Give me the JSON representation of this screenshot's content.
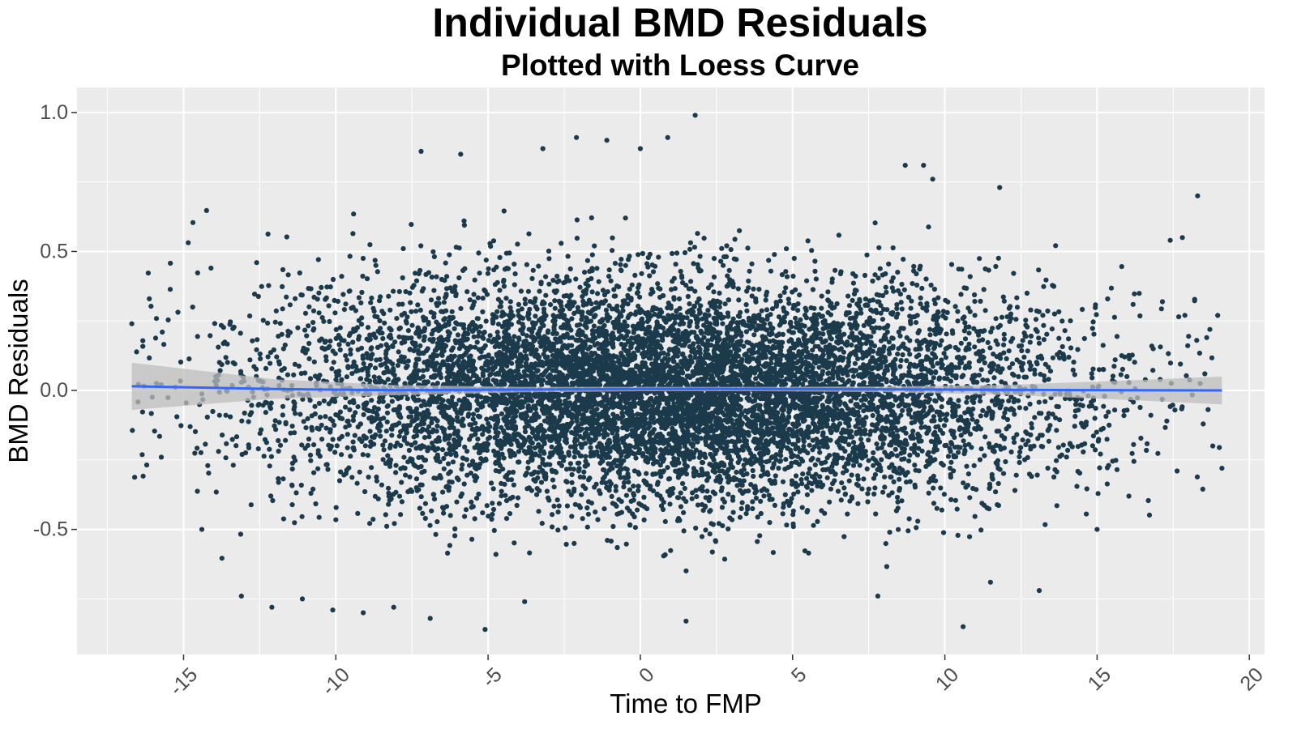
{
  "chart_data": {
    "type": "scatter",
    "title": "Individual BMD Residuals",
    "subtitle": "Plotted with Loess Curve",
    "xlabel": "Time to FMP",
    "ylabel": "BMD Residuals",
    "xlim": [
      -18.5,
      20.5
    ],
    "ylim": [
      -0.95,
      1.09
    ],
    "x_ticks": [
      -15,
      -10,
      -5,
      0,
      5,
      10,
      15,
      20
    ],
    "x_tick_labels": [
      "-15",
      "-10",
      "-5",
      "0",
      "5",
      "10",
      "15",
      "20"
    ],
    "y_ticks": [
      -0.5,
      0.0,
      0.5,
      1.0
    ],
    "y_tick_labels": [
      "-0.5",
      "0.0",
      "0.5",
      "1.0"
    ],
    "grid": true,
    "colors": {
      "panel_background": "#ebebeb",
      "grid": "#ffffff",
      "points": "#1b3a4b",
      "loess_line": "#3366ff",
      "confidence_band": "#bdbdbd"
    },
    "points_summary": {
      "count_approx": 9000,
      "x_center": 1.0,
      "x_sd": 6.5,
      "y_center": 0.0,
      "y_sd": 0.2,
      "x_range": [
        -16.7,
        19.1
      ],
      "y_range": [
        -0.86,
        0.99
      ]
    },
    "outliers": [
      {
        "x": -16.7,
        "y": 0.24
      },
      {
        "x": -15.7,
        "y": 0.21
      },
      {
        "x": -14.7,
        "y": 0.3
      },
      {
        "x": -14.4,
        "y": -0.5
      },
      {
        "x": -14.1,
        "y": 0.44
      },
      {
        "x": -13.1,
        "y": -0.74
      },
      {
        "x": -12.6,
        "y": 0.46
      },
      {
        "x": -12.1,
        "y": -0.78
      },
      {
        "x": -11.1,
        "y": -0.75
      },
      {
        "x": -10.1,
        "y": -0.79
      },
      {
        "x": -9.1,
        "y": -0.8
      },
      {
        "x": -8.1,
        "y": -0.78
      },
      {
        "x": -7.2,
        "y": 0.86
      },
      {
        "x": -6.9,
        "y": -0.82
      },
      {
        "x": -5.9,
        "y": 0.85
      },
      {
        "x": -5.1,
        "y": -0.86
      },
      {
        "x": -3.8,
        "y": -0.76
      },
      {
        "x": -3.2,
        "y": 0.87
      },
      {
        "x": -2.1,
        "y": 0.91
      },
      {
        "x": -1.1,
        "y": 0.9
      },
      {
        "x": 0.0,
        "y": 0.87
      },
      {
        "x": 0.9,
        "y": 0.91
      },
      {
        "x": 1.5,
        "y": -0.83
      },
      {
        "x": 1.8,
        "y": 0.99
      },
      {
        "x": 7.8,
        "y": -0.74
      },
      {
        "x": 8.7,
        "y": 0.81
      },
      {
        "x": 9.3,
        "y": 0.81
      },
      {
        "x": 9.6,
        "y": 0.76
      },
      {
        "x": 10.6,
        "y": -0.85
      },
      {
        "x": 11.5,
        "y": -0.69
      },
      {
        "x": 11.8,
        "y": 0.73
      },
      {
        "x": 13.1,
        "y": -0.72
      },
      {
        "x": 15.0,
        "y": -0.5
      },
      {
        "x": 17.4,
        "y": 0.54
      },
      {
        "x": 17.8,
        "y": 0.55
      },
      {
        "x": 18.3,
        "y": 0.7
      },
      {
        "x": 18.6,
        "y": 0.19
      },
      {
        "x": 18.8,
        "y": -0.2
      },
      {
        "x": 19.1,
        "y": -0.28
      }
    ],
    "loess": {
      "x": [
        -16.7,
        -12,
        -8,
        -4,
        0,
        4,
        8,
        12,
        16,
        19.1
      ],
      "y": [
        0.015,
        0.005,
        0.001,
        0.003,
        0.005,
        0.005,
        0.004,
        0.002,
        0.001,
        0.0
      ],
      "ci_half_width": [
        0.085,
        0.035,
        0.018,
        0.01,
        0.008,
        0.008,
        0.01,
        0.018,
        0.035,
        0.05
      ]
    }
  }
}
